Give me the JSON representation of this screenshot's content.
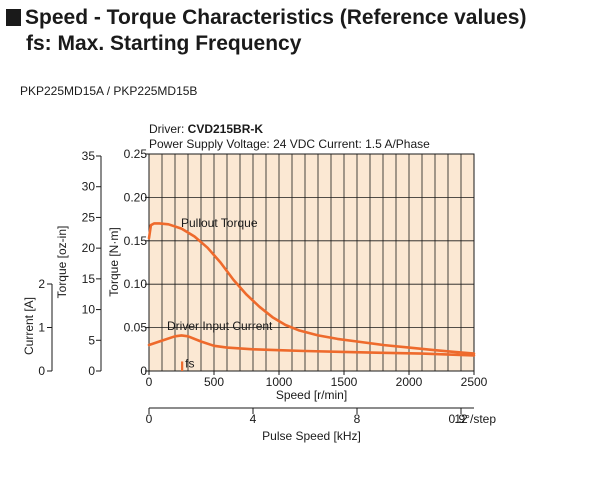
{
  "header": {
    "title": "Speed - Torque Characteristics (Reference values)",
    "subtitle": "fs: Max. Starting Frequency"
  },
  "model": "PKP225MD15A / PKP225MD15B",
  "chart_data": {
    "type": "line",
    "driver_label": "Driver:",
    "driver_value": "CVD215BR-K",
    "conditions": "Power Supply Voltage: 24 VDC  Current: 1.5 A/Phase",
    "xlabel": "Speed [r/min]",
    "xlim": [
      0,
      2500
    ],
    "xticks": [
      0,
      500,
      1000,
      1500,
      2000,
      2500
    ],
    "ylabel": "Torque [N·m]",
    "ylim": [
      0,
      0.25
    ],
    "yticks": [
      "0",
      "0.05",
      "0.10",
      "0.15",
      "0.20",
      "0.25"
    ],
    "grid": true,
    "secondary_axes": [
      {
        "label": "Torque [oz-in]",
        "ticks": [
          "0",
          "5",
          "10",
          "15",
          "20",
          "25",
          "30",
          "35"
        ]
      },
      {
        "label": "Current [A]",
        "ticks": [
          "0",
          "1",
          "2"
        ]
      }
    ],
    "pulse_axis": {
      "label": "Pulse Speed [kHz]",
      "ticks": [
        {
          "value": 0,
          "label": "0"
        },
        {
          "value": 4,
          "label": "4"
        },
        {
          "value": 8,
          "label": "8"
        },
        {
          "value": 12,
          "label": "12"
        }
      ],
      "step_label": "0.9°/step"
    },
    "series": [
      {
        "name": "Pullout Torque",
        "color": "#ee6a2c",
        "x": [
          0,
          15,
          40,
          80,
          150,
          250,
          350,
          450,
          550,
          650,
          750,
          850,
          950,
          1050,
          1150,
          1300,
          1450,
          1600,
          1800,
          2000,
          2200,
          2350,
          2500
        ],
        "y": [
          0.153,
          0.168,
          0.17,
          0.17,
          0.169,
          0.164,
          0.155,
          0.142,
          0.125,
          0.105,
          0.088,
          0.074,
          0.062,
          0.053,
          0.047,
          0.041,
          0.037,
          0.034,
          0.03,
          0.027,
          0.024,
          0.022,
          0.02
        ]
      },
      {
        "name": "Driver Input Current",
        "color": "#ee6a2c",
        "x": [
          0,
          100,
          200,
          250,
          300,
          400,
          500,
          600,
          700,
          800,
          1000,
          1200,
          1500,
          1800,
          2100,
          2500
        ],
        "y": [
          0.03,
          0.035,
          0.04,
          0.041,
          0.04,
          0.034,
          0.029,
          0.027,
          0.026,
          0.025,
          0.024,
          0.023,
          0.022,
          0.021,
          0.02,
          0.018
        ]
      }
    ],
    "fs": {
      "label": "fs",
      "x": 255,
      "y_range": [
        0,
        0.011
      ]
    }
  }
}
